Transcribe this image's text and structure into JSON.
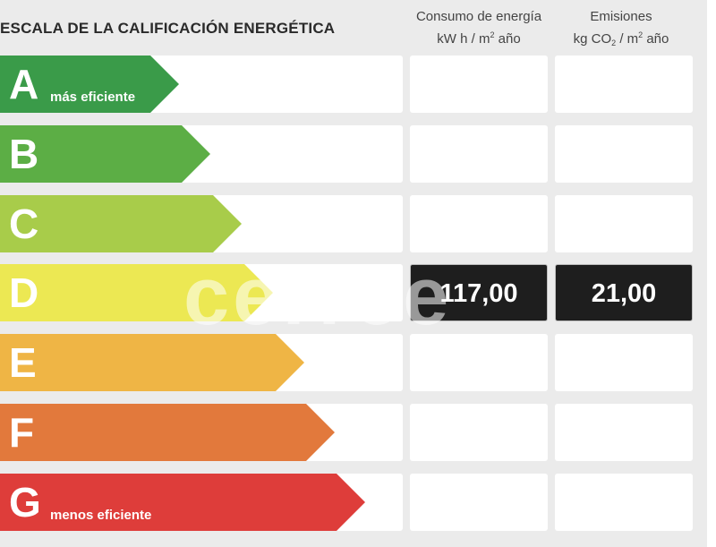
{
  "title": "ESCALA DE LA CALIFICACIÓN ENERGÉTICA",
  "columns": {
    "consumo": {
      "line1": "Consumo de energía",
      "unit_pre": "kW h  / m",
      "unit_sup": "2",
      "unit_post": " año"
    },
    "emisiones": {
      "line1": "Emisiones",
      "unit_pre": "kg CO",
      "unit_sub": "2",
      "unit_mid": "  / m",
      "unit_sup": "2",
      "unit_post": " año"
    }
  },
  "ratings": [
    {
      "letter": "A",
      "caption": "más eficiente",
      "color": "#3a9b49"
    },
    {
      "letter": "B",
      "caption": "",
      "color": "#5cae45"
    },
    {
      "letter": "C",
      "caption": "",
      "color": "#a8cc4a"
    },
    {
      "letter": "D",
      "caption": "",
      "color": "#ece853"
    },
    {
      "letter": "E",
      "caption": "",
      "color": "#efb545"
    },
    {
      "letter": "F",
      "caption": "",
      "color": "#e2793c"
    },
    {
      "letter": "G",
      "caption": "menos eficiente",
      "color": "#de3d3a"
    }
  ],
  "current": {
    "rating": "D",
    "consumo": "117,00",
    "emisiones": "21,00"
  },
  "watermark": "cerree"
}
